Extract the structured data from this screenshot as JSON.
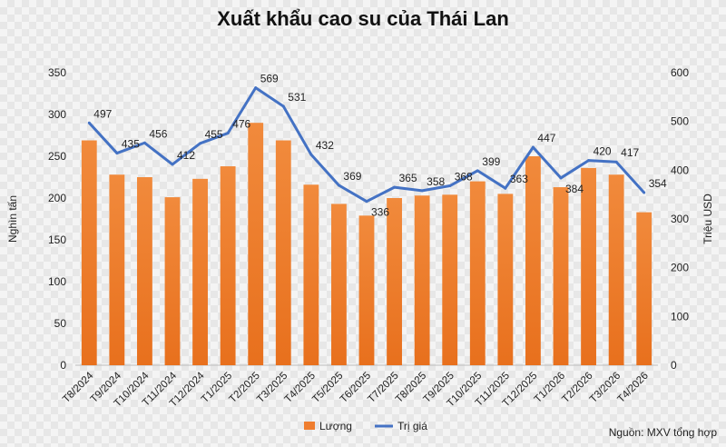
{
  "chart_data": {
    "type": "bar",
    "title": "Xuất khẩu cao su của Thái Lan",
    "ylabel": "Nghìn tấn",
    "y2label": "Triệu USD",
    "ylim": [
      0,
      350
    ],
    "y2lim": [
      0,
      600
    ],
    "yticks": [
      "0",
      "50",
      "100",
      "150",
      "200",
      "250",
      "300",
      "350"
    ],
    "y2ticks": [
      "0",
      "100",
      "200",
      "300",
      "400",
      "500",
      "600"
    ],
    "grid": false,
    "legend_position": "bottom",
    "categories": [
      "T8/2024",
      "T9/2024",
      "T10/2024",
      "T11/2024",
      "T12/2024",
      "T1/2025",
      "T2/2025",
      "T3/2025",
      "T4/2025",
      "T5/2025",
      "T6/2025",
      "T7/2025",
      "T8/2025",
      "T9/2025",
      "T10/2025",
      "T11/2025",
      "T12/2025",
      "T1/2026",
      "T2/2026",
      "T3/2026",
      "T4/2026"
    ],
    "series": [
      {
        "name": "Lượng",
        "type": "bar",
        "axis": "left",
        "color": "#ef7d2e",
        "values": [
          269,
          228,
          225,
          201,
          223,
          238,
          290,
          269,
          216,
          193,
          179,
          200,
          203,
          204,
          220,
          205,
          250,
          213,
          236,
          228,
          183
        ]
      },
      {
        "name": "Trị giá",
        "type": "line",
        "axis": "right",
        "color": "#4472c4",
        "values": [
          497,
          435,
          456,
          412,
          455,
          476,
          569,
          531,
          432,
          369,
          336,
          365,
          358,
          368,
          399,
          363,
          447,
          384,
          420,
          417,
          354
        ],
        "labels": [
          "497",
          "435",
          "456",
          "412",
          "455",
          "476",
          "569",
          "531",
          "432",
          "369",
          "336",
          "365",
          "358",
          "368",
          "399",
          "363",
          "447",
          "384",
          "420",
          "417",
          "354"
        ]
      }
    ]
  },
  "footer": {
    "source": "Nguồn: MXV tổng hợp"
  }
}
